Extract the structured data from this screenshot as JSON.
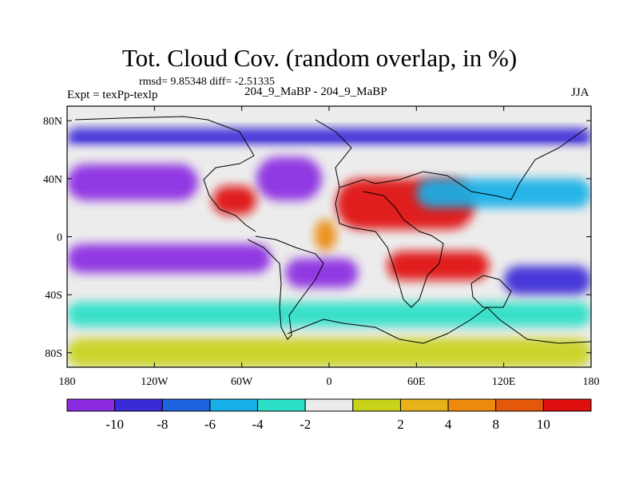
{
  "header": {
    "title": "Tot. Cloud Cov. (random overlap, in %)",
    "stats": "rmsd= 9.85348 diff= -2.51335",
    "experiment": "Expt = texPp-texlp",
    "runs": "204_9_MaBP - 204_9_MaBP",
    "season": "JJA"
  },
  "chart_data": {
    "type": "heatmap",
    "title": "Tot. Cloud Cov. (random overlap, in %)",
    "projection": "cylindrical-equidistant",
    "xlim": [
      -180,
      180
    ],
    "ylim": [
      -90,
      90
    ],
    "x_ticks": [
      {
        "value": -180,
        "label": "180"
      },
      {
        "value": -120,
        "label": "120W"
      },
      {
        "value": -60,
        "label": "60W"
      },
      {
        "value": 0,
        "label": "0"
      },
      {
        "value": 60,
        "label": "60E"
      },
      {
        "value": 120,
        "label": "120E"
      },
      {
        "value": 180,
        "label": "180"
      }
    ],
    "y_ticks": [
      {
        "value": 80,
        "label": "80N"
      },
      {
        "value": 40,
        "label": "40N"
      },
      {
        "value": 0,
        "label": "0"
      },
      {
        "value": -40,
        "label": "40S"
      },
      {
        "value": -80,
        "label": "80S"
      }
    ],
    "colorbar": {
      "placement": "bottom",
      "colors": [
        "#8a2be2",
        "#3a2ad8",
        "#1f63e0",
        "#19b0e8",
        "#2ce0c8",
        "#ececec",
        "#c9d31a",
        "#e8b21a",
        "#ec8a0c",
        "#e4580a",
        "#e01010"
      ],
      "labels": [
        "-10",
        "-8",
        "-6",
        "-4",
        "-2",
        "2",
        "4",
        "8",
        "10"
      ]
    },
    "features": [
      {
        "lon": [
          -180,
          180
        ],
        "lat": [
          75,
          90
        ],
        "level": 5
      },
      {
        "lon": [
          -180,
          180
        ],
        "lat": [
          62,
          75
        ],
        "level": 1
      },
      {
        "lon": [
          -180,
          180
        ],
        "lat": [
          50,
          62
        ],
        "level": 5
      },
      {
        "lon": [
          -180,
          -90
        ],
        "lat": [
          25,
          50
        ],
        "level": 0
      },
      {
        "lon": [
          -50,
          -5
        ],
        "lat": [
          25,
          55
        ],
        "level": 0
      },
      {
        "lon": [
          -80,
          -50
        ],
        "lat": [
          15,
          35
        ],
        "level": 10
      },
      {
        "lon": [
          5,
          100
        ],
        "lat": [
          5,
          40
        ],
        "level": 10
      },
      {
        "lon": [
          -10,
          5
        ],
        "lat": [
          -10,
          12
        ],
        "level": 8
      },
      {
        "lon": [
          -180,
          -40
        ],
        "lat": [
          -25,
          -5
        ],
        "level": 0
      },
      {
        "lon": [
          -30,
          20
        ],
        "lat": [
          -35,
          -15
        ],
        "level": 0
      },
      {
        "lon": [
          40,
          110
        ],
        "lat": [
          -30,
          -10
        ],
        "level": 10
      },
      {
        "lon": [
          120,
          180
        ],
        "lat": [
          -40,
          -20
        ],
        "level": 1
      },
      {
        "lon": [
          -180,
          180
        ],
        "lat": [
          -62,
          -45
        ],
        "level": 4
      },
      {
        "lon": [
          -180,
          180
        ],
        "lat": [
          -90,
          -70
        ],
        "level": 6
      },
      {
        "lon": [
          60,
          180
        ],
        "lat": [
          20,
          40
        ],
        "level": 3
      }
    ]
  }
}
